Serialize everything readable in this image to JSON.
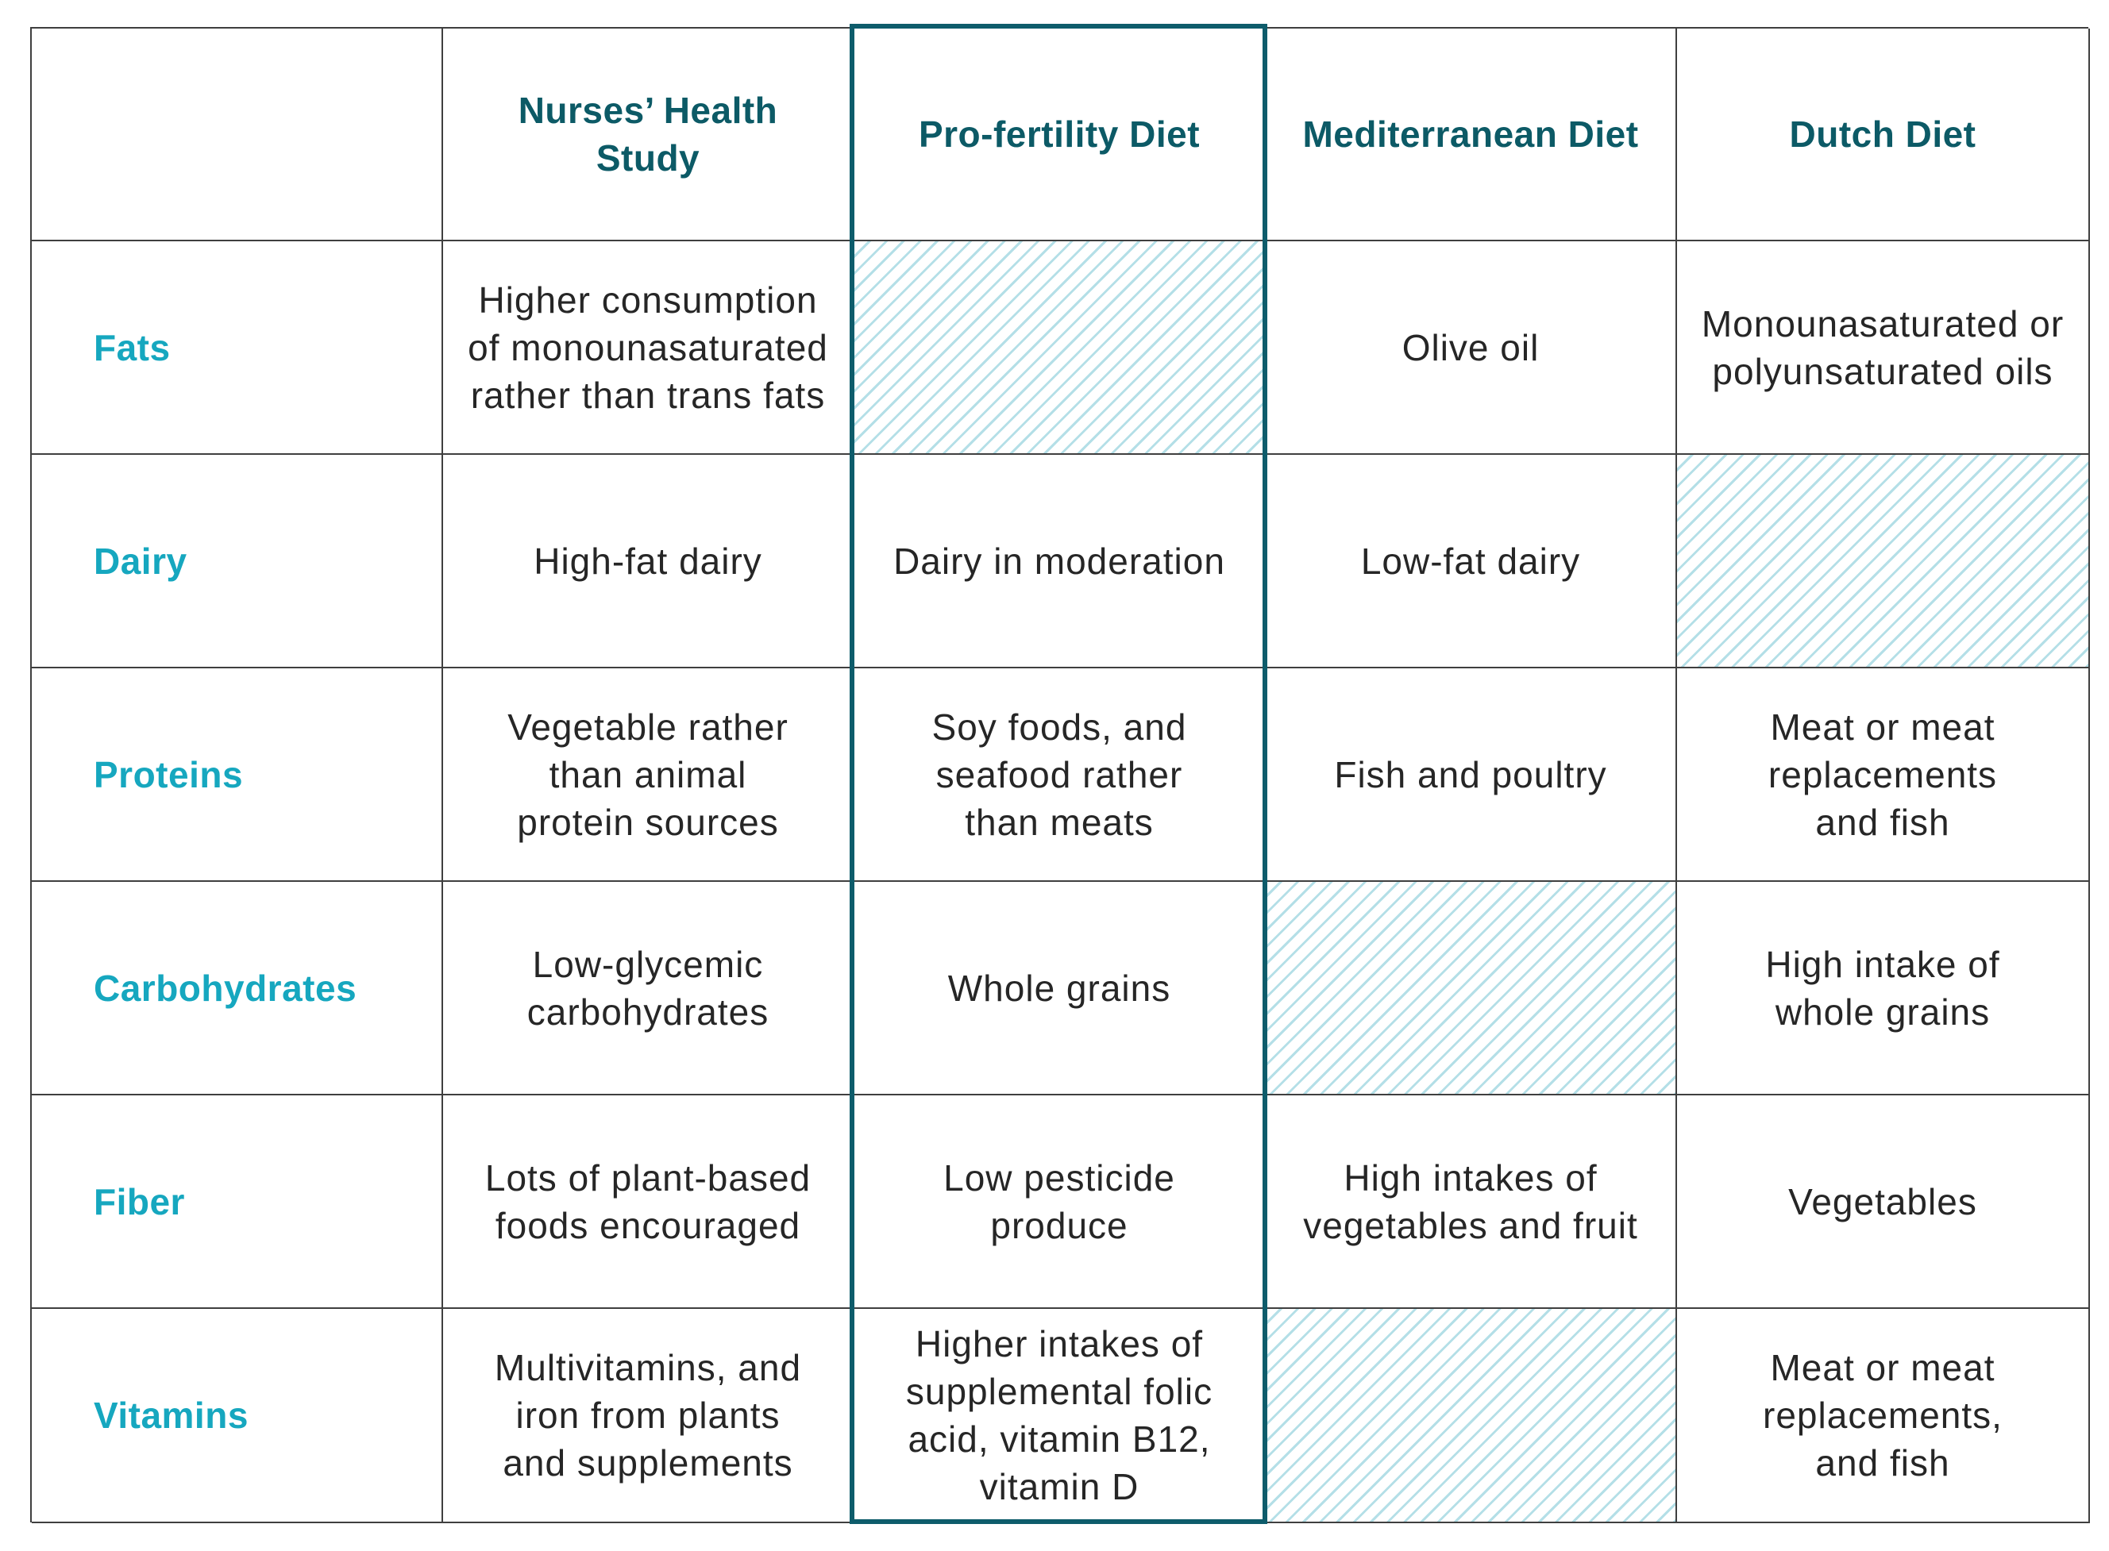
{
  "columns": [
    "",
    "Nurses’ Health Study",
    "Pro-fertility Diet",
    "Mediterranean Diet",
    "Dutch Diet"
  ],
  "rows": [
    {
      "label": "Fats",
      "cells": [
        "Higher consumption\nof monounasaturated\nrather than trans fats",
        "",
        "Olive oil",
        "Monounasaturated or\npolyunsaturated oils"
      ]
    },
    {
      "label": "Dairy",
      "cells": [
        "High-fat dairy",
        "Dairy in moderation",
        "Low-fat dairy",
        ""
      ]
    },
    {
      "label": "Proteins",
      "cells": [
        "Vegetable rather\nthan animal\nprotein sources",
        "Soy foods, and\nseafood rather\nthan meats",
        "Fish and poultry",
        "Meat or meat\nreplacements\nand fish"
      ]
    },
    {
      "label": "Carbohydrates",
      "cells": [
        "Low-glycemic\ncarbohydrates",
        "Whole grains",
        "",
        "High intake of\nwhole grains"
      ]
    },
    {
      "label": "Fiber",
      "cells": [
        "Lots of plant-based\nfoods encouraged",
        "Low pesticide\nproduce",
        "High intakes of\nvegetables and fruit",
        "Vegetables"
      ]
    },
    {
      "label": "Vitamins",
      "cells": [
        "Multivitamins, and\niron from plants\nand supplements",
        "Higher intakes of\nsupplemental folic\nacid, vitamin B12,\nvitamin D",
        "",
        "Meat or meat\nreplacements,\nand fish"
      ]
    }
  ],
  "colors": {
    "header_text": "#0c5a66",
    "row_label_text": "#16a7bf",
    "highlight_border": "#0e5c6b",
    "hatch": "#b4dfe7",
    "grid": "#3f3f3f"
  }
}
